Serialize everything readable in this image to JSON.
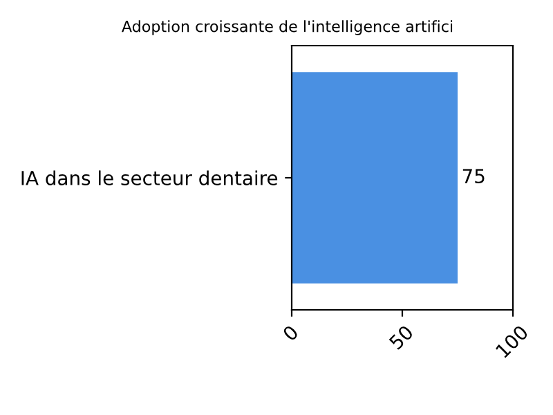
{
  "chart_data": {
    "type": "bar",
    "orientation": "horizontal",
    "title": "Adoption croissante de l'intelligence artifici",
    "categories": [
      "IA dans le secteur dentaire"
    ],
    "values": [
      75
    ],
    "color": "#4a90e2",
    "xlim": [
      0,
      100
    ],
    "xticks": [
      0,
      50,
      100
    ],
    "data_labels": true,
    "grid": false,
    "legend": false
  }
}
